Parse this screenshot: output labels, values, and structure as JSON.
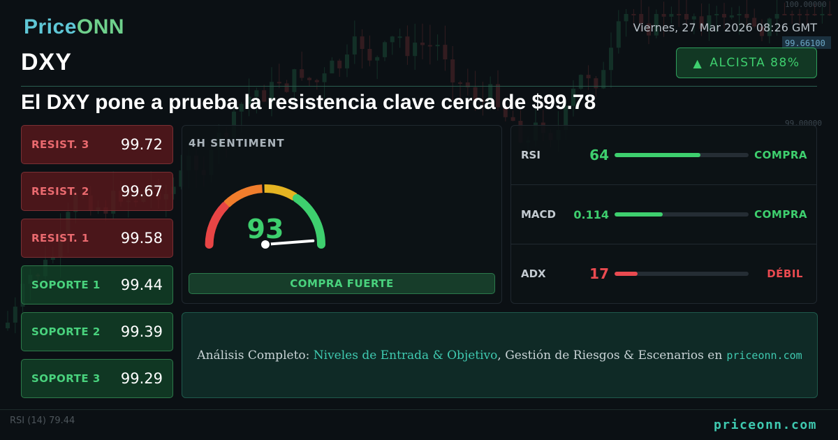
{
  "brand": {
    "part1": "Price",
    "part2": "ONN",
    "accent_cyan": "#5fc7d6",
    "accent_green": "#6fd08c"
  },
  "datetime": "Viernes, 27 Mar 2026 08:26 GMT",
  "ticker": "DXY",
  "trend": {
    "arrow": "▲",
    "label": "ALCISTA 88%",
    "color": "#3ecf6e"
  },
  "headline": "El DXY pone a prueba la resistencia clave cerca de $99.78",
  "levels": {
    "resistance": [
      {
        "label": "RESIST. 3",
        "value": "99.72"
      },
      {
        "label": "RESIST. 2",
        "value": "99.67"
      },
      {
        "label": "RESIST. 1",
        "value": "99.58"
      }
    ],
    "support": [
      {
        "label": "SOPORTE 1",
        "value": "99.44"
      },
      {
        "label": "SOPORTE 2",
        "value": "99.39"
      },
      {
        "label": "SOPORTE 3",
        "value": "99.29"
      }
    ]
  },
  "sentiment": {
    "title": "4H SENTIMENT",
    "value": "93",
    "score": 93,
    "label": "COMPRA FUERTE",
    "gauge_colors": [
      "#e84545",
      "#f07d2c",
      "#e5b422",
      "#3ecf6e"
    ]
  },
  "indicators": [
    {
      "name": "RSI",
      "value": "64",
      "fill_pct": 64,
      "signal": "COMPRA",
      "color": "#3ecf6e"
    },
    {
      "name": "MACD",
      "value": "0.114",
      "fill_pct": 36,
      "signal": "COMPRA",
      "color": "#3ecf6e"
    },
    {
      "name": "ADX",
      "value": "17",
      "fill_pct": 17,
      "signal": "DÉBIL",
      "color": "#ea4a50"
    }
  ],
  "cta": {
    "prefix": "Análisis Completo: ",
    "highlight": "Niveles de Entrada & Objetivo",
    "middle": ", Gestión de Riesgos & Escenarios en",
    "site": "priceonn.com"
  },
  "background_chart": {
    "price_tag": "99.66100",
    "axis_labels": [
      "100.00000",
      "99.00000"
    ],
    "rsi_label": "RSI",
    "rsi_period": "(14)",
    "rsi_value": "79.44"
  },
  "footer": {
    "site": "priceonn.com"
  }
}
